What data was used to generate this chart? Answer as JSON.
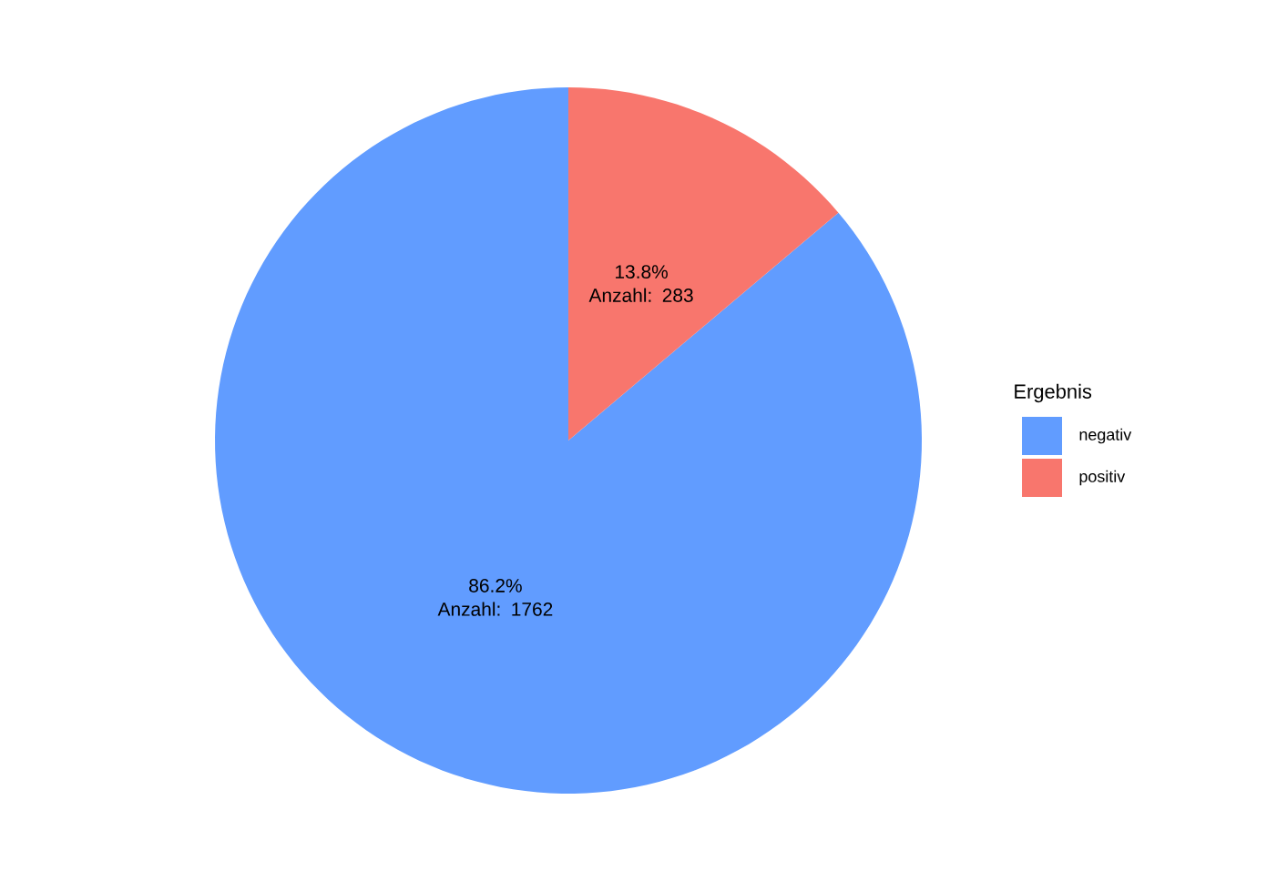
{
  "chart_data": {
    "type": "pie",
    "categories": [
      "negativ",
      "positiv"
    ],
    "values": [
      1762,
      283
    ],
    "colors": [
      "#619cff",
      "#f8766d"
    ],
    "value_labels": [
      "86.2% Anzahl: 1762",
      "13.8% Anzahl: 283"
    ],
    "legend_title": "Ergebnis",
    "legend": "right"
  }
}
